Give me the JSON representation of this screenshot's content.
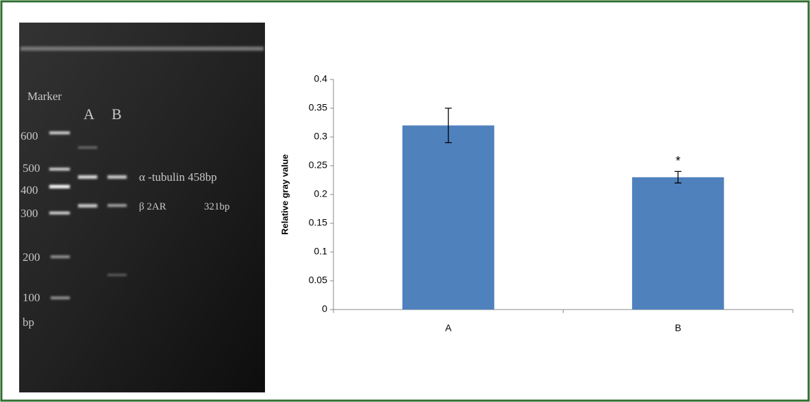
{
  "gel": {
    "marker_label": "Marker",
    "lanes": [
      "A",
      "B"
    ],
    "sizes": [
      "600",
      "500",
      "400",
      "300",
      "200",
      "100"
    ],
    "unit": "bp",
    "band_labels": [
      "α -tubulin 458bp",
      "β 2AR",
      "321bp"
    ]
  },
  "chart_data": {
    "type": "bar",
    "y_label": "Relative gray value",
    "categories": [
      "A",
      "B"
    ],
    "values": [
      0.32,
      0.23
    ],
    "errors": [
      0.03,
      0.01
    ],
    "color": "#4f81bd",
    "annotations": [
      {
        "text": "*",
        "category": "B"
      }
    ],
    "ylim": [
      0,
      0.4
    ],
    "yticks": [
      0,
      0.05,
      0.1,
      0.15,
      0.2,
      0.25,
      0.3,
      0.35,
      0.4
    ]
  }
}
